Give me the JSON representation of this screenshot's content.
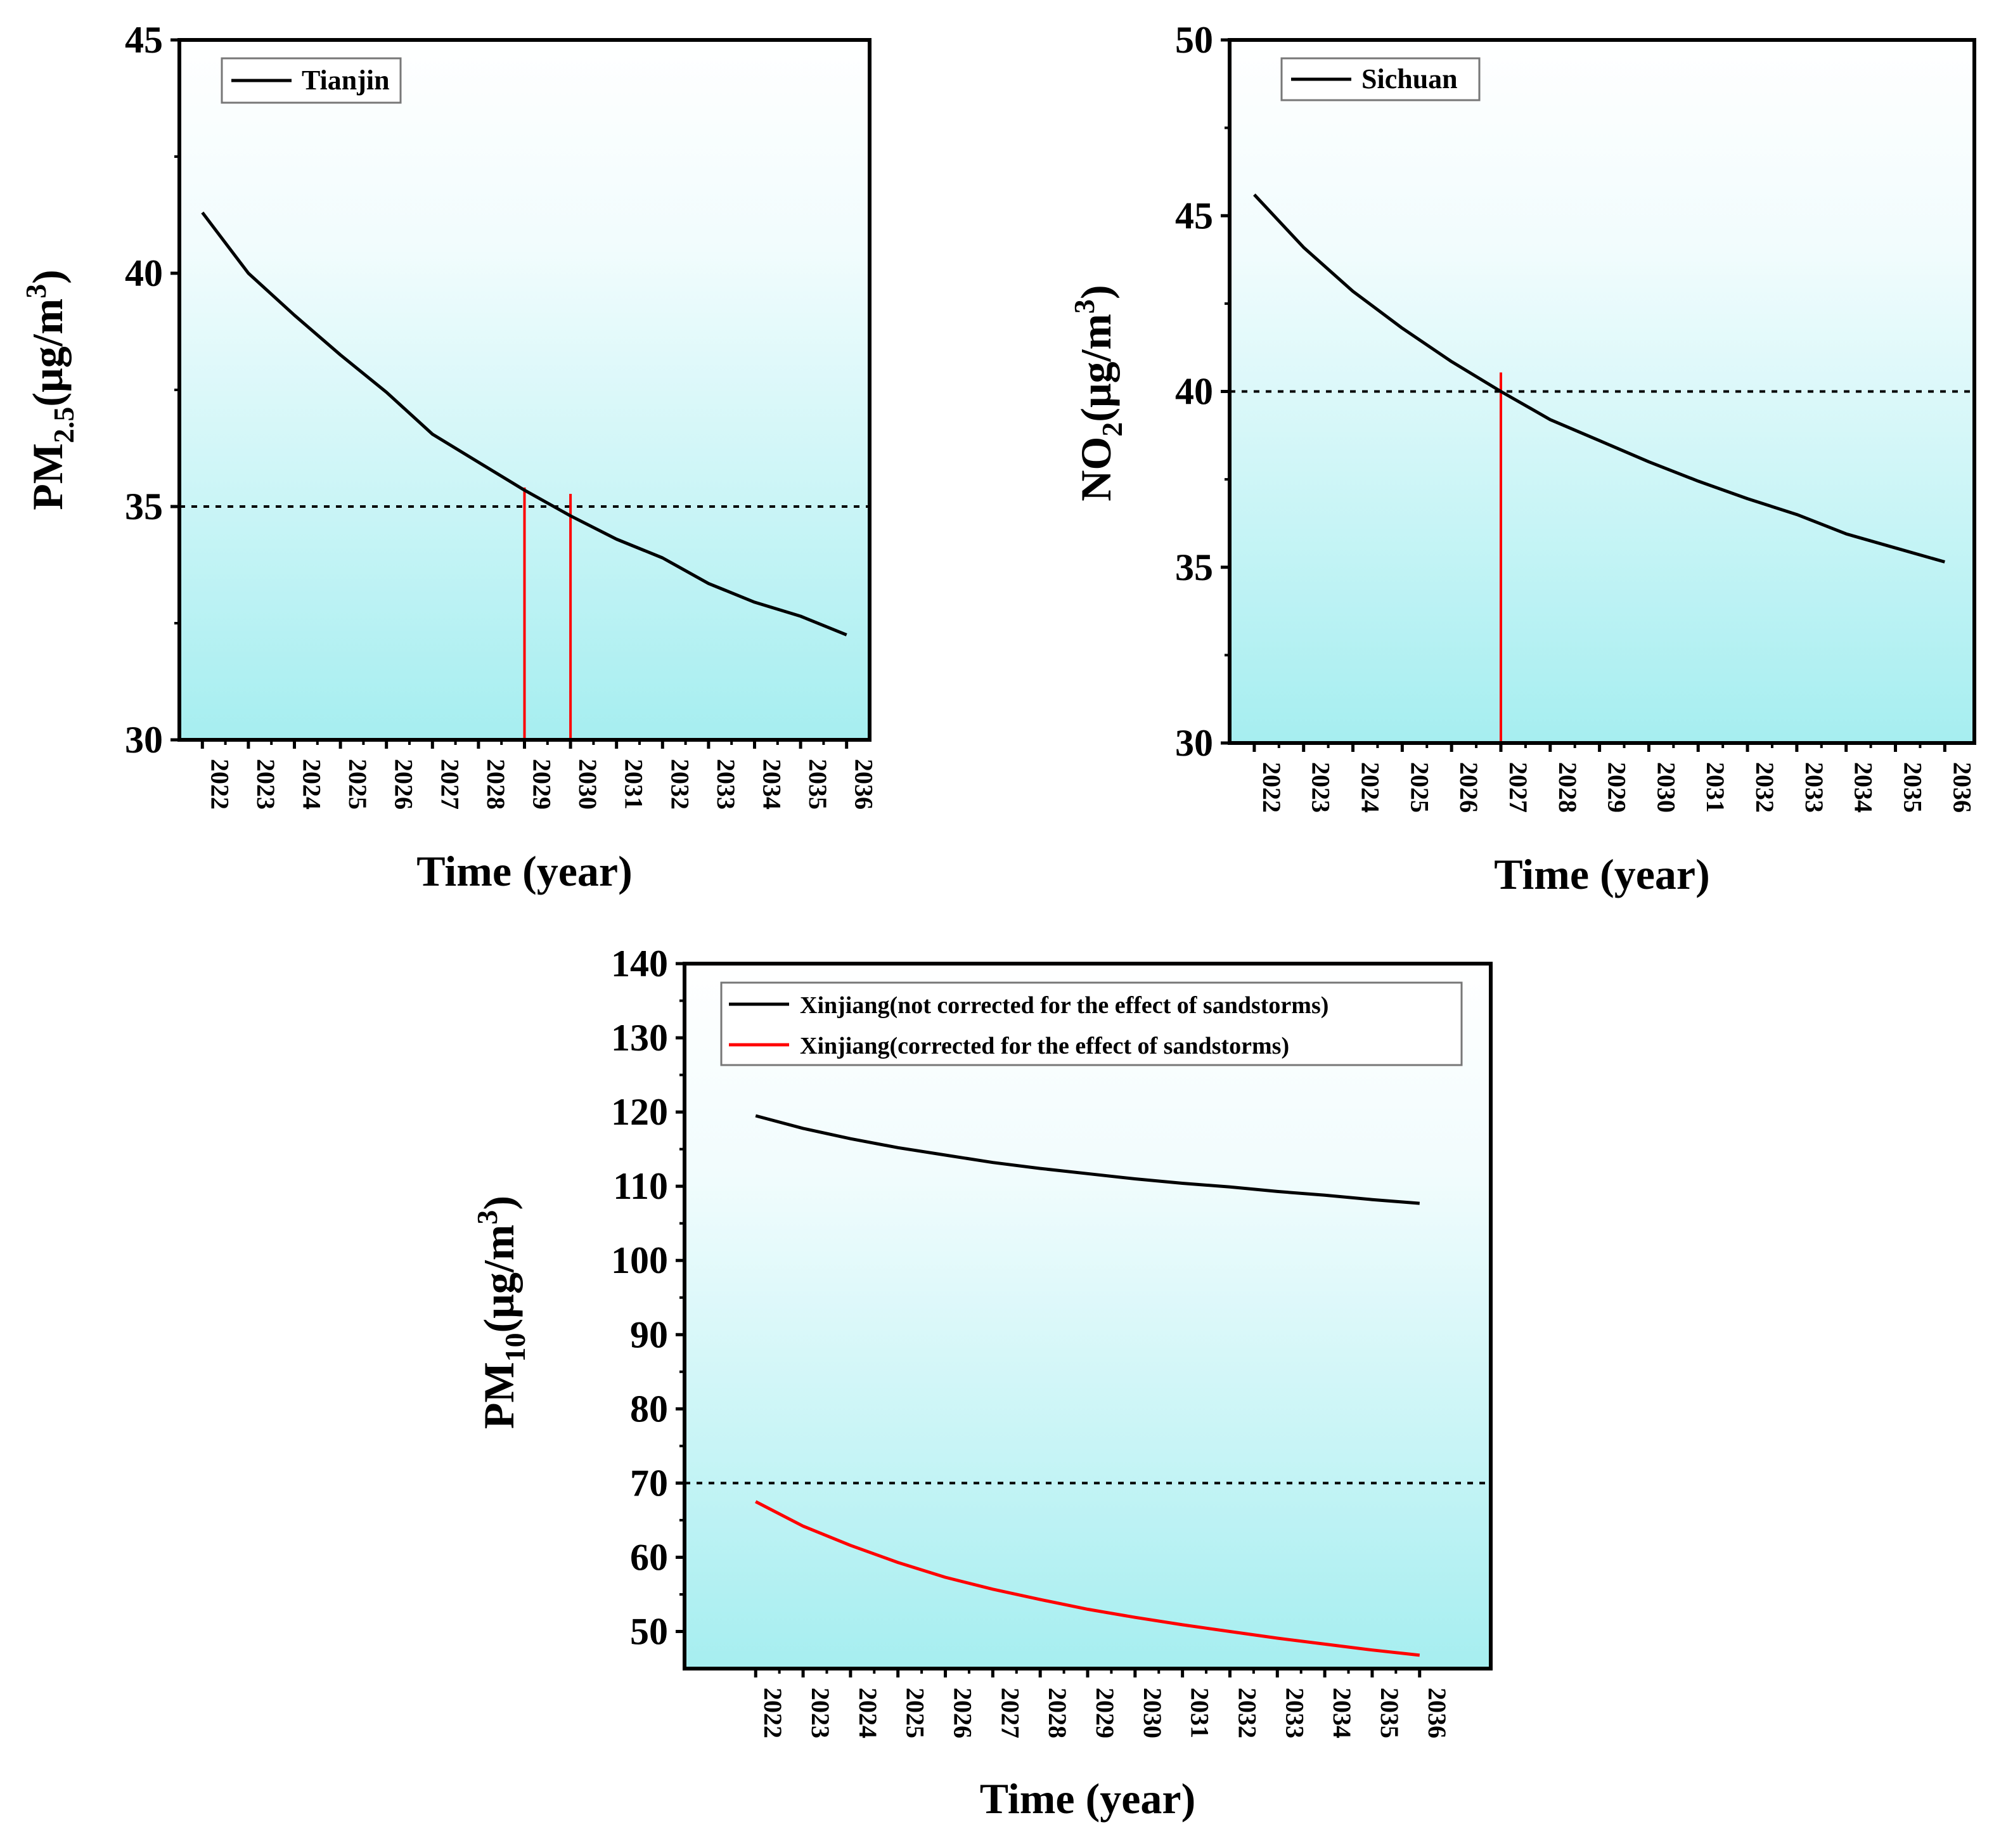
{
  "chart_data": [
    {
      "type": "line",
      "id": "tianjin",
      "xlabel": "Time (year)",
      "ylabel_main": "PM",
      "ylabel_sub": "2.5",
      "ylabel_unit": "(μg/m",
      "ylabel_sup": "3",
      "ylabel_close": ")",
      "ylim": [
        30,
        45
      ],
      "yticks": [
        "30",
        "35",
        "40",
        "45"
      ],
      "ytick_values": [
        30,
        35,
        40,
        45
      ],
      "x": [
        2022,
        2023,
        2024,
        2025,
        2026,
        2027,
        2028,
        2029,
        2030,
        2031,
        2032,
        2033,
        2034,
        2035,
        2036
      ],
      "xticks": [
        "2022",
        "2023",
        "2024",
        "2025",
        "2026",
        "2027",
        "2028",
        "2029",
        "2030",
        "2031",
        "2032",
        "2033",
        "2034",
        "2035",
        "2036"
      ],
      "xlim": [
        2021.5,
        2036.5
      ],
      "threshold": 35,
      "markers": [
        2029.0,
        2030.0
      ],
      "series": [
        {
          "name": "Tianjin",
          "color": "#000000",
          "values": [
            41.3,
            40.0,
            39.1,
            38.25,
            37.45,
            36.55,
            35.95,
            35.35,
            34.8,
            34.3,
            33.9,
            33.35,
            32.95,
            32.65,
            32.25
          ]
        }
      ],
      "legend": [
        "Tianjin"
      ],
      "legend_position": "top-left",
      "threshold_color": "#000000",
      "marker_color": "#ff0000"
    },
    {
      "type": "line",
      "id": "sichuan",
      "xlabel": "Time (year)",
      "ylabel_main": "NO",
      "ylabel_sub": "2",
      "ylabel_unit": "(μg/m",
      "ylabel_sup": "3",
      "ylabel_close": ")",
      "ylim": [
        30,
        50
      ],
      "yticks": [
        "30",
        "35",
        "40",
        "45",
        "50"
      ],
      "ytick_values": [
        30,
        35,
        40,
        45,
        50
      ],
      "x": [
        2022,
        2023,
        2024,
        2025,
        2026,
        2027,
        2028,
        2029,
        2030,
        2031,
        2032,
        2033,
        2034,
        2035,
        2036
      ],
      "xticks": [
        "2022",
        "2023",
        "2024",
        "2025",
        "2026",
        "2027",
        "2028",
        "2029",
        "2030",
        "2031",
        "2032",
        "2033",
        "2034",
        "2035",
        "2036"
      ],
      "xlim": [
        2021.5,
        2036.6
      ],
      "threshold": 40,
      "markers": [
        2027.0
      ],
      "series": [
        {
          "name": "Sichuan",
          "color": "#000000",
          "values": [
            45.6,
            44.1,
            42.85,
            41.8,
            40.85,
            40.0,
            39.2,
            38.6,
            38.0,
            37.45,
            36.95,
            36.5,
            35.95,
            35.55,
            35.15
          ]
        }
      ],
      "legend": [
        "Sichuan"
      ],
      "legend_position": "top-left",
      "threshold_color": "#000000",
      "marker_color": "#ff0000"
    },
    {
      "type": "line",
      "id": "xinjiang",
      "xlabel": "Time (year)",
      "ylabel_main": "PM",
      "ylabel_sub": "10",
      "ylabel_unit": "(μg/m",
      "ylabel_sup": "3",
      "ylabel_close": ")",
      "ylim": [
        45,
        140
      ],
      "yticks": [
        "50",
        "60",
        "70",
        "80",
        "90",
        "100",
        "110",
        "120",
        "130",
        "140"
      ],
      "ytick_values": [
        50,
        60,
        70,
        80,
        90,
        100,
        110,
        120,
        130,
        140
      ],
      "x": [
        2022,
        2023,
        2024,
        2025,
        2026,
        2027,
        2028,
        2029,
        2030,
        2031,
        2032,
        2033,
        2034,
        2035,
        2036
      ],
      "xticks": [
        "2022",
        "2023",
        "2024",
        "2025",
        "2026",
        "2027",
        "2028",
        "2029",
        "2030",
        "2031",
        "2032",
        "2033",
        "2034",
        "2035",
        "2036"
      ],
      "xlim": [
        2020.5,
        2037.5
      ],
      "threshold": 70,
      "markers": [],
      "series": [
        {
          "name": "Xinjiang(not corrected for the effect of sandstorms)",
          "color": "#000000",
          "values": [
            119.5,
            117.8,
            116.4,
            115.2,
            114.2,
            113.2,
            112.4,
            111.7,
            111.0,
            110.4,
            109.9,
            109.3,
            108.8,
            108.2,
            107.7
          ]
        },
        {
          "name": "Xinjiang(corrected for the effect of sandstorms)",
          "color": "#ff0000",
          "values": [
            67.5,
            64.2,
            61.6,
            59.3,
            57.3,
            55.7,
            54.3,
            53.0,
            51.9,
            50.9,
            50.0,
            49.1,
            48.3,
            47.5,
            46.8
          ]
        }
      ],
      "legend": [
        "Xinjiang(not corrected for the effect of sandstorms)",
        "Xinjiang(corrected for the effect of sandstorms)"
      ],
      "legend_position": "top",
      "threshold_color": "#000000",
      "marker_color": "#ff0000"
    }
  ]
}
